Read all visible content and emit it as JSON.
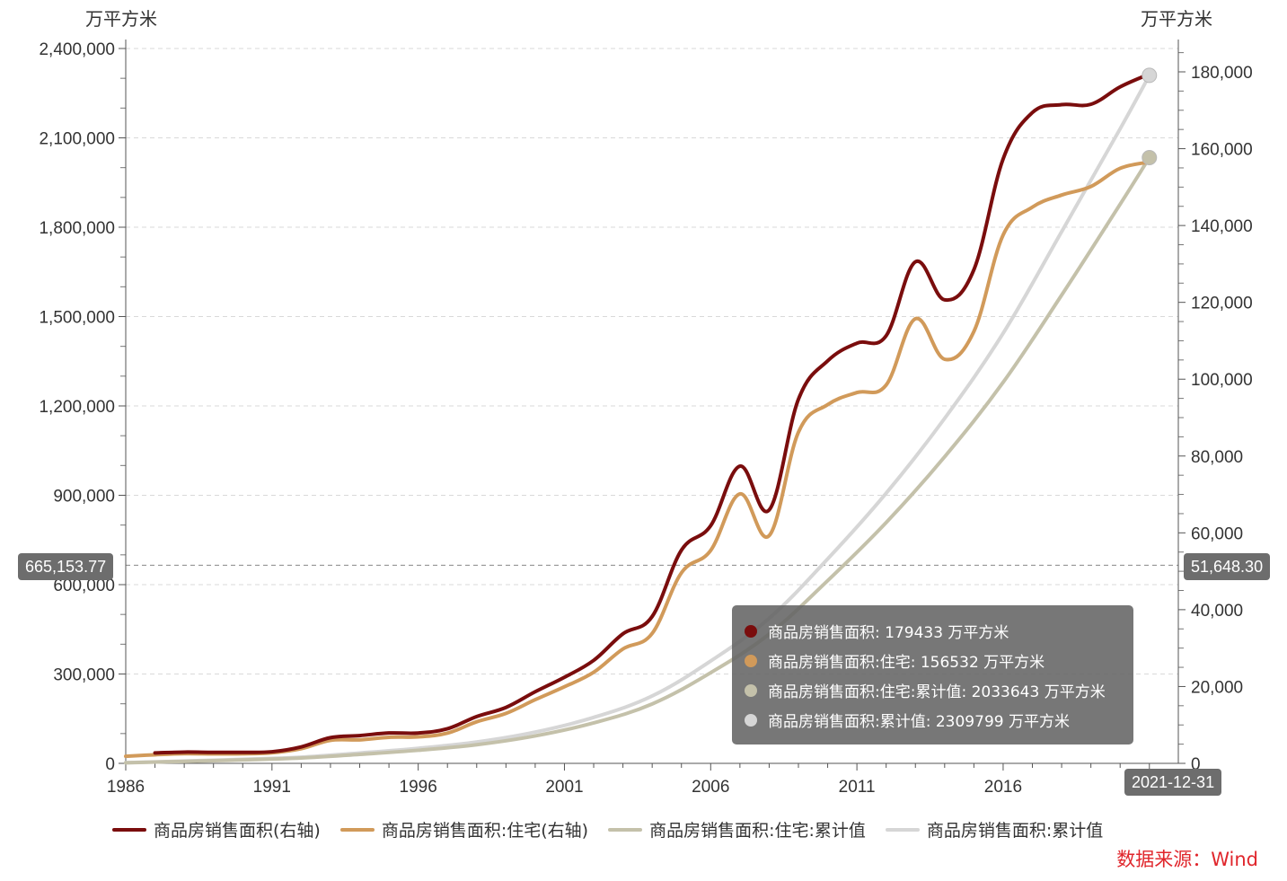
{
  "chart_data": {
    "type": "line",
    "left_axis": {
      "unit": "万平方米",
      "range": [
        0,
        2400000
      ],
      "ticks": [
        "0",
        "300,000",
        "600,000",
        "900,000",
        "1,200,000",
        "1,500,000",
        "1,800,000",
        "2,100,000",
        "2,400,000"
      ]
    },
    "right_axis": {
      "unit": "万平方米",
      "range": [
        0,
        187500
      ],
      "ticks": [
        "0",
        "20,000",
        "40,000",
        "60,000",
        "80,000",
        "100,000",
        "120,000",
        "140,000",
        "160,000",
        "180,000"
      ]
    },
    "x_axis": {
      "range": [
        1986,
        2021.99
      ],
      "ticks": [
        "1986",
        "1991",
        "1996",
        "2001",
        "2006",
        "2011",
        "2016"
      ]
    },
    "grid": true,
    "legend_position": "bottom",
    "series": [
      {
        "name": "商品房销售面积(右轴)",
        "axis": "right",
        "color": "#7a0d0d",
        "x": [
          1987,
          1988,
          1989,
          1990,
          1991,
          1992,
          1993,
          1994,
          1995,
          1996,
          1997,
          1998,
          1999,
          2000,
          2001,
          2002,
          2003,
          2004,
          2005,
          2006,
          2007,
          2008,
          2009,
          2010,
          2011,
          2012,
          2013,
          2014,
          2015,
          2016,
          2017,
          2018,
          2019,
          2020,
          2021
        ],
        "values": [
          2719,
          2935,
          2867,
          2872,
          3026,
          4289,
          6688,
          7230,
          7906,
          7900,
          9010,
          12185,
          14557,
          18637,
          22412,
          26808,
          33718,
          38232,
          55486,
          61857,
          77355,
          65969,
          94755,
          104765,
          109367,
          111304,
          130551,
          120649,
          128495,
          157349,
          169408,
          171465,
          171558,
          176086,
          179433
        ]
      },
      {
        "name": "商品房销售面积:住宅(右轴)",
        "axis": "right",
        "color": "#d19a5a",
        "x": [
          1986,
          1987,
          1988,
          1989,
          1990,
          1991,
          1992,
          1993,
          1994,
          1995,
          1996,
          1997,
          1998,
          1999,
          2000,
          2001,
          2002,
          2003,
          2004,
          2005,
          2006,
          2007,
          2008,
          2009,
          2010,
          2011,
          2012,
          2013,
          2014,
          2015,
          2016,
          2017,
          2018,
          2019,
          2020,
          2021
        ],
        "values": [
          1835,
          2234,
          2514,
          2468,
          2486,
          2745,
          3812,
          5996,
          6118,
          6787,
          6898,
          7864,
          10827,
          12998,
          16570,
          19939,
          23702,
          29779,
          33820,
          49588,
          55423,
          70136,
          59280,
          86185,
          93377,
          96528,
          98468,
          115723,
          105188,
          112412,
          137540,
          144789,
          147929,
          150144,
          154878,
          156532
        ]
      },
      {
        "name": "商品房销售面积:住宅:累计值",
        "axis": "left",
        "color": "#c4c1aa",
        "x": [
          1986,
          1988,
          1990,
          1992,
          1994,
          1996,
          1998,
          2000,
          2002,
          2004,
          2006,
          2008,
          2010,
          2012,
          2014,
          2016,
          2018,
          2020,
          2021
        ],
        "values": [
          1835,
          6583,
          11537,
          18094,
          30208,
          43893,
          62584,
          92152,
          135793,
          199392,
          304403,
          433819,
          613381,
          808377,
          1029288,
          1279240,
          1571958,
          1877111,
          2033643
        ]
      },
      {
        "name": "商品房销售面积:累计值",
        "axis": "left",
        "color": "#d6d6d6",
        "x": [
          1986,
          1988,
          1990,
          1992,
          1994,
          1996,
          1998,
          2000,
          2002,
          2004,
          2006,
          2008,
          2010,
          2012,
          2014,
          2016,
          2018,
          2020,
          2021
        ],
        "values": [
          2200,
          7854,
          13593,
          20908,
          34826,
          50632,
          71827,
          105021,
          154241,
          226191,
          343534,
          486858,
          686378,
          906949,
          1158148,
          1443992,
          1784865,
          2130366,
          2309799
        ]
      }
    ],
    "crosshair": {
      "left_value": "665,153.77",
      "right_value": "51,648.30",
      "date": "2021-12-31"
    },
    "tooltip": [
      {
        "color": "#7a0d0d",
        "text": "商品房销售面积: 179433  万平方米"
      },
      {
        "color": "#d19a5a",
        "text": "商品房销售面积:住宅: 156532  万平方米"
      },
      {
        "color": "#c4c1aa",
        "text": "商品房销售面积:住宅:累计值: 2033643  万平方米"
      },
      {
        "color": "#d6d6d6",
        "text": "商品房销售面积:累计值: 2309799  万平方米"
      }
    ]
  },
  "source": "数据来源：Wind"
}
